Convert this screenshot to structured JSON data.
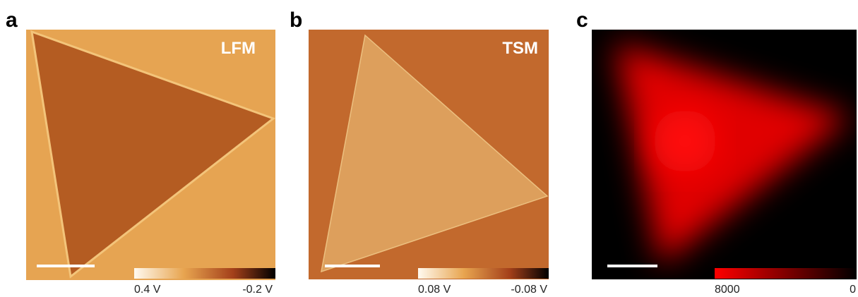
{
  "panels": [
    {
      "label": "a",
      "title": "LFM",
      "colorbar": {
        "min_label": "0.4 V",
        "max_label": "-0.2 V"
      }
    },
    {
      "label": "b",
      "title": "TSM",
      "colorbar": {
        "min_label": "0.08 V",
        "max_label": "-0.08 V"
      }
    },
    {
      "label": "c",
      "colorbar": {
        "min_label": "8000",
        "max_label": "0"
      }
    }
  ]
}
